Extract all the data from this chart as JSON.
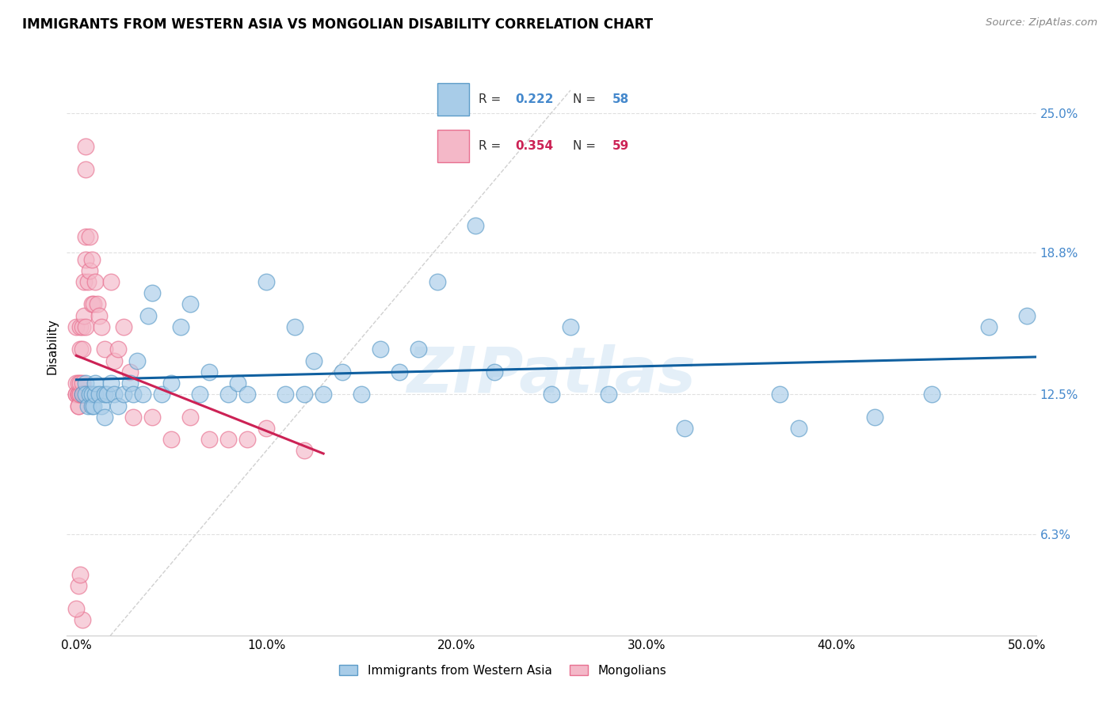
{
  "title": "IMMIGRANTS FROM WESTERN ASIA VS MONGOLIAN DISABILITY CORRELATION CHART",
  "source": "Source: ZipAtlas.com",
  "ylabel": "Disability",
  "ytick_labels": [
    "25.0%",
    "18.8%",
    "12.5%",
    "6.3%"
  ],
  "ytick_values": [
    0.25,
    0.188,
    0.125,
    0.063
  ],
  "xlim": [
    -0.005,
    0.505
  ],
  "ylim": [
    0.018,
    0.275
  ],
  "watermark": "ZIPatlas",
  "blue_color": "#a8cce8",
  "pink_color": "#f4b8c8",
  "blue_edge_color": "#5b9bc8",
  "pink_edge_color": "#e87090",
  "blue_line_color": "#1060a0",
  "pink_line_color": "#cc2255",
  "diagonal_color": "#d0d0d0",
  "grid_color": "#e0e0e0",
  "right_axis_color": "#4488cc",
  "blue_x": [
    0.003,
    0.005,
    0.005,
    0.006,
    0.007,
    0.008,
    0.008,
    0.009,
    0.01,
    0.01,
    0.012,
    0.013,
    0.015,
    0.015,
    0.016,
    0.018,
    0.02,
    0.022,
    0.025,
    0.028,
    0.03,
    0.032,
    0.035,
    0.038,
    0.04,
    0.045,
    0.05,
    0.055,
    0.06,
    0.065,
    0.07,
    0.08,
    0.085,
    0.09,
    0.1,
    0.11,
    0.115,
    0.12,
    0.125,
    0.13,
    0.14,
    0.15,
    0.16,
    0.17,
    0.18,
    0.19,
    0.21,
    0.22,
    0.25,
    0.26,
    0.28,
    0.32,
    0.37,
    0.38,
    0.42,
    0.45,
    0.48,
    0.5
  ],
  "blue_y": [
    0.125,
    0.13,
    0.125,
    0.12,
    0.125,
    0.12,
    0.125,
    0.12,
    0.125,
    0.13,
    0.125,
    0.12,
    0.125,
    0.115,
    0.125,
    0.13,
    0.125,
    0.12,
    0.125,
    0.13,
    0.125,
    0.14,
    0.125,
    0.16,
    0.17,
    0.125,
    0.13,
    0.155,
    0.165,
    0.125,
    0.135,
    0.125,
    0.13,
    0.125,
    0.175,
    0.125,
    0.155,
    0.125,
    0.14,
    0.125,
    0.135,
    0.125,
    0.145,
    0.135,
    0.145,
    0.175,
    0.2,
    0.135,
    0.125,
    0.155,
    0.125,
    0.11,
    0.125,
    0.11,
    0.115,
    0.125,
    0.155,
    0.16
  ],
  "pink_x": [
    0.0,
    0.0,
    0.0,
    0.0,
    0.001,
    0.001,
    0.001,
    0.001,
    0.001,
    0.001,
    0.002,
    0.002,
    0.002,
    0.002,
    0.002,
    0.003,
    0.003,
    0.003,
    0.003,
    0.003,
    0.004,
    0.004,
    0.004,
    0.005,
    0.005,
    0.005,
    0.005,
    0.005,
    0.005,
    0.006,
    0.006,
    0.007,
    0.007,
    0.008,
    0.008,
    0.009,
    0.01,
    0.011,
    0.012,
    0.013,
    0.015,
    0.018,
    0.02,
    0.022,
    0.025,
    0.028,
    0.03,
    0.04,
    0.05,
    0.06,
    0.07,
    0.08,
    0.09,
    0.1,
    0.12,
    0.001,
    0.002,
    0.003,
    0.0
  ],
  "pink_y": [
    0.125,
    0.13,
    0.125,
    0.155,
    0.125,
    0.125,
    0.12,
    0.125,
    0.13,
    0.12,
    0.125,
    0.125,
    0.13,
    0.145,
    0.155,
    0.125,
    0.13,
    0.145,
    0.125,
    0.155,
    0.125,
    0.16,
    0.175,
    0.125,
    0.155,
    0.185,
    0.195,
    0.225,
    0.235,
    0.125,
    0.175,
    0.18,
    0.195,
    0.165,
    0.185,
    0.165,
    0.175,
    0.165,
    0.16,
    0.155,
    0.145,
    0.175,
    0.14,
    0.145,
    0.155,
    0.135,
    0.115,
    0.115,
    0.105,
    0.115,
    0.105,
    0.105,
    0.105,
    0.11,
    0.1,
    0.04,
    0.045,
    0.025,
    0.03
  ]
}
